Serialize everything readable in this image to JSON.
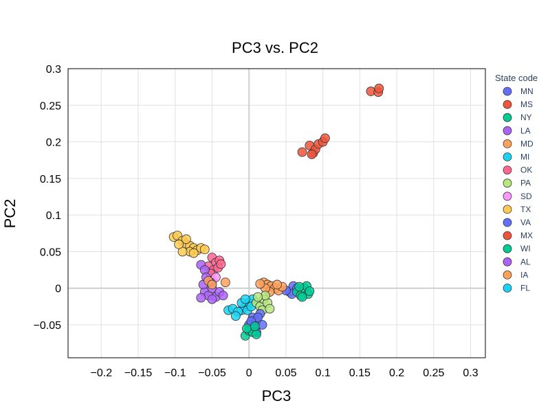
{
  "chart_data": {
    "type": "scatter",
    "title": "PC3 vs. PC2",
    "xlabel": "PC3",
    "ylabel": "PC2",
    "xlim": [
      -0.245,
      0.32
    ],
    "ylim": [
      -0.095,
      0.3
    ],
    "x_ticks": [
      -0.2,
      -0.15,
      -0.1,
      -0.05,
      0,
      0.05,
      0.1,
      0.15,
      0.2,
      0.25,
      0.3
    ],
    "x_tick_labels": [
      "−0.2",
      "−0.15",
      "−0.1",
      "−0.05",
      "0",
      "0.05",
      "0.1",
      "0.15",
      "0.2",
      "0.25",
      "0.3"
    ],
    "y_ticks": [
      -0.05,
      0,
      0.05,
      0.1,
      0.15,
      0.2,
      0.25,
      0.3
    ],
    "y_tick_labels": [
      "−0.05",
      "0",
      "0.05",
      "0.1",
      "0.15",
      "0.2",
      "0.25",
      "0.3"
    ],
    "grid": true,
    "legend_title": "State code",
    "legend_position": "right",
    "series": [
      {
        "name": "MN",
        "color": "#636efa",
        "points": [
          [
            0.055,
            -0.005
          ],
          [
            0.06,
            0.003
          ],
          [
            0.058,
            -0.008
          ],
          [
            0.065,
            0.0
          ],
          [
            0.05,
            -0.003
          ]
        ]
      },
      {
        "name": "MS",
        "color": "#ef553b",
        "points": [
          [
            0.072,
            0.186
          ],
          [
            0.082,
            0.195
          ],
          [
            0.087,
            0.185
          ],
          [
            0.09,
            0.19
          ],
          [
            0.094,
            0.197
          ],
          [
            0.1,
            0.2
          ],
          [
            0.103,
            0.205
          ],
          [
            0.085,
            0.183
          ]
        ]
      },
      {
        "name": "NY",
        "color": "#00cc96",
        "points": [
          [
            0.065,
            -0.005
          ],
          [
            0.07,
            -0.01
          ],
          [
            0.075,
            0.0
          ],
          [
            0.08,
            -0.008
          ],
          [
            0.078,
            0.003
          ],
          [
            0.072,
            -0.012
          ],
          [
            0.068,
            0.002
          ],
          [
            0.082,
            -0.004
          ]
        ]
      },
      {
        "name": "LA",
        "color": "#ab63fa",
        "points": [
          [
            -0.06,
            -0.005
          ],
          [
            -0.055,
            -0.01
          ],
          [
            -0.05,
            0.0
          ],
          [
            -0.045,
            -0.012
          ],
          [
            -0.04,
            -0.005
          ],
          [
            -0.05,
            -0.015
          ],
          [
            -0.062,
            0.005
          ],
          [
            -0.035,
            -0.01
          ]
        ]
      },
      {
        "name": "MD",
        "color": "#ffa15a",
        "points": [
          [
            0.02,
            0.008
          ],
          [
            0.025,
            0.005
          ],
          [
            0.03,
            0.003
          ],
          [
            0.035,
            0.0
          ],
          [
            0.028,
            -0.005
          ],
          [
            0.04,
            -0.003
          ],
          [
            0.045,
            0.002
          ],
          [
            0.022,
            0.0
          ],
          [
            0.015,
            0.006
          ],
          [
            0.038,
            0.005
          ]
        ]
      },
      {
        "name": "MI",
        "color": "#19d3f3",
        "points": [
          [
            -0.005,
            -0.025
          ],
          [
            0.0,
            -0.02
          ],
          [
            0.005,
            -0.015
          ],
          [
            -0.01,
            -0.03
          ],
          [
            0.01,
            -0.02
          ],
          [
            -0.002,
            -0.03
          ],
          [
            0.003,
            -0.025
          ]
        ]
      },
      {
        "name": "OK",
        "color": "#ff6692",
        "points": [
          [
            -0.05,
            0.042
          ],
          [
            -0.045,
            0.035
          ],
          [
            -0.04,
            0.038
          ],
          [
            -0.055,
            0.03
          ],
          [
            -0.048,
            0.025
          ],
          [
            -0.042,
            0.028
          ],
          [
            -0.052,
            0.02
          ],
          [
            -0.038,
            0.033
          ]
        ]
      },
      {
        "name": "PA",
        "color": "#b6e880",
        "points": [
          [
            0.01,
            -0.02
          ],
          [
            0.015,
            -0.025
          ],
          [
            0.02,
            -0.015
          ],
          [
            0.025,
            -0.02
          ],
          [
            0.018,
            -0.03
          ],
          [
            0.022,
            -0.01
          ],
          [
            0.012,
            -0.012
          ],
          [
            0.028,
            -0.028
          ]
        ]
      },
      {
        "name": "SD",
        "color": "#ff97ff",
        "points": [
          [
            -0.05,
            0.01
          ],
          [
            -0.045,
            0.015
          ]
        ]
      },
      {
        "name": "TX",
        "color": "#fecb52",
        "points": [
          [
            -0.102,
            0.07
          ],
          [
            -0.097,
            0.072
          ],
          [
            -0.09,
            0.065
          ],
          [
            -0.085,
            0.06
          ],
          [
            -0.08,
            0.058
          ],
          [
            -0.075,
            0.055
          ],
          [
            -0.07,
            0.052
          ],
          [
            -0.065,
            0.055
          ],
          [
            -0.06,
            0.053
          ],
          [
            -0.08,
            0.05
          ],
          [
            -0.09,
            0.05
          ],
          [
            -0.085,
            0.067
          ],
          [
            -0.095,
            0.06
          ],
          [
            -0.075,
            0.048
          ]
        ]
      },
      {
        "name": "VA",
        "color": "#636efa",
        "points": [
          [
            0.005,
            -0.04
          ],
          [
            0.01,
            -0.045
          ],
          [
            0.015,
            -0.035
          ],
          [
            0.0,
            -0.05
          ],
          [
            0.008,
            -0.055
          ],
          [
            0.012,
            -0.04
          ],
          [
            0.018,
            -0.05
          ],
          [
            0.003,
            -0.045
          ],
          [
            0.01,
            -0.06
          ]
        ]
      },
      {
        "name": "MX",
        "color": "#ef553b",
        "points": [
          [
            0.165,
            0.269
          ],
          [
            0.175,
            0.268
          ],
          [
            0.176,
            0.273
          ]
        ]
      },
      {
        "name": "WI",
        "color": "#00cc96",
        "points": [
          [
            -0.005,
            -0.065
          ],
          [
            0.0,
            -0.058
          ],
          [
            0.005,
            -0.06
          ],
          [
            0.01,
            -0.063
          ],
          [
            -0.003,
            -0.055
          ],
          [
            0.008,
            -0.052
          ]
        ]
      },
      {
        "name": "AL",
        "color": "#ab63fa",
        "points": [
          [
            -0.065,
            0.032
          ],
          [
            -0.06,
            0.025
          ],
          [
            -0.065,
            -0.013
          ],
          [
            -0.058,
            0.015
          ],
          [
            -0.052,
            0.008
          ]
        ]
      },
      {
        "name": "IA",
        "color": "#ffa15a",
        "points": [
          [
            -0.055,
            0.01
          ],
          [
            -0.05,
            0.005
          ],
          [
            -0.032,
            0.008
          ]
        ]
      },
      {
        "name": "FL",
        "color": "#19d3f3",
        "points": [
          [
            -0.028,
            -0.03
          ],
          [
            -0.022,
            -0.028
          ],
          [
            -0.015,
            -0.032
          ],
          [
            -0.01,
            -0.02
          ],
          [
            -0.005,
            -0.015
          ],
          [
            -0.018,
            -0.038
          ]
        ]
      }
    ]
  }
}
